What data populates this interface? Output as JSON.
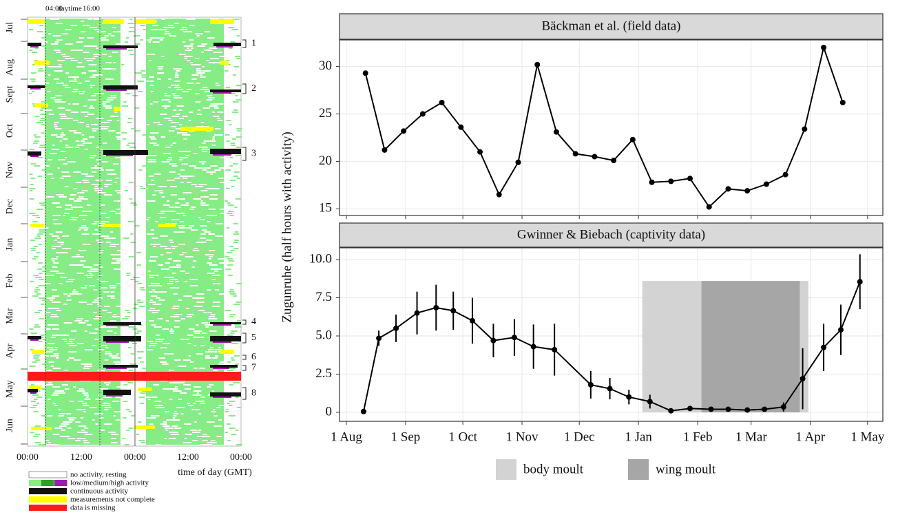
{
  "actogram": {
    "top_labels": [
      "04:00",
      "daytime",
      "16:00"
    ],
    "months": [
      "Jul",
      "Aug",
      "Sept",
      "Oct",
      "Nov",
      "Dec",
      "Jan",
      "Feb",
      "Mar",
      "Apr",
      "May",
      "Jun"
    ],
    "x_labels": [
      "00:00",
      "12:00",
      "00:00",
      "12:00",
      "00:00"
    ],
    "x_title": "time of day (GMT)",
    "periods": [
      "1",
      "2",
      "3",
      "4",
      "5",
      "6",
      "7",
      "8"
    ],
    "legend": [
      "no activity, resting",
      "low/medium/high activity",
      "continuous activity",
      "measurements not complete",
      "data is missing"
    ]
  },
  "y_label": "Zugunruhe (half hours with activity)",
  "chart_data": [
    {
      "type": "line",
      "title": "Bäckman et al. (field data)",
      "color": "#000000",
      "grid": true,
      "x": [
        10,
        20,
        30,
        40,
        50,
        60,
        70,
        80,
        90,
        100,
        110,
        120,
        130,
        140,
        150,
        160,
        170,
        180,
        190,
        200,
        210,
        220,
        230,
        240,
        250,
        260
      ],
      "values": [
        29.3,
        21.2,
        23.2,
        25.0,
        26.2,
        23.6,
        21.0,
        16.5,
        19.9,
        30.2,
        23.1,
        20.8,
        20.5,
        20.1,
        22.3,
        17.8,
        17.9,
        18.2,
        15.2,
        17.1,
        16.9,
        17.6,
        18.6,
        23.4,
        32.0,
        26.2
      ],
      "xlim": [
        -3.6,
        281
      ],
      "xticks": [
        0,
        31,
        61,
        92,
        122,
        153,
        184,
        212,
        243,
        273
      ],
      "ylim": [
        14.3,
        32.8
      ],
      "yticks": [
        15,
        20,
        25,
        30
      ]
    },
    {
      "type": "line",
      "title": "Gwinner & Biebach (captivity data)",
      "color": "#000000",
      "grid": true,
      "x": [
        9,
        17,
        26,
        37,
        47,
        56,
        66,
        77,
        88,
        98,
        109,
        128,
        138,
        148,
        159,
        170,
        180,
        191,
        200,
        210,
        219,
        229,
        239,
        250,
        259,
        269
      ],
      "values": [
        0.05,
        4.85,
        5.5,
        6.5,
        6.85,
        6.65,
        6.0,
        4.7,
        4.9,
        4.3,
        4.1,
        1.8,
        1.55,
        1.0,
        0.7,
        0.1,
        0.25,
        0.2,
        0.2,
        0.15,
        0.2,
        0.35,
        2.2,
        4.25,
        5.4,
        8.55
      ],
      "errors": [
        null,
        0.5,
        0.9,
        1.4,
        1.5,
        1.25,
        1.5,
        1.1,
        1.2,
        1.45,
        1.7,
        0.9,
        0.7,
        0.48,
        0.45,
        0.08,
        0.08,
        0.05,
        0.05,
        0.05,
        0.05,
        0.3,
        2.0,
        1.55,
        1.65,
        1.8
      ],
      "spans": [
        {
          "name": "body moult",
          "color": "#d3d3d3",
          "x": [
            155,
            242
          ],
          "y": [
            0,
            8.6
          ]
        },
        {
          "name": "wing moult",
          "color": "#a6a6a6",
          "x": [
            186,
            237.5
          ],
          "y": [
            0,
            8.6
          ]
        }
      ],
      "xlim": [
        -3.6,
        281
      ],
      "xticks": [
        {
          "value": 0,
          "label": "1 Aug"
        },
        {
          "value": 31,
          "label": "1 Sep"
        },
        {
          "value": 61,
          "label": "1 Oct"
        },
        {
          "value": 92,
          "label": "1 Nov"
        },
        {
          "value": 122,
          "label": "1 Dec"
        },
        {
          "value": 153,
          "label": "1 Jan"
        },
        {
          "value": 184,
          "label": "1 Feb"
        },
        {
          "value": 212,
          "label": "1 Mar"
        },
        {
          "value": 243,
          "label": "1 Apr"
        },
        {
          "value": 273,
          "label": "1 May"
        }
      ],
      "ylim": [
        -0.59,
        10.77
      ],
      "yticks": [
        0,
        2.5,
        {
          "value": 5,
          "label": "5.0"
        },
        7.5,
        {
          "value": 10,
          "label": "10.0"
        }
      ]
    }
  ]
}
